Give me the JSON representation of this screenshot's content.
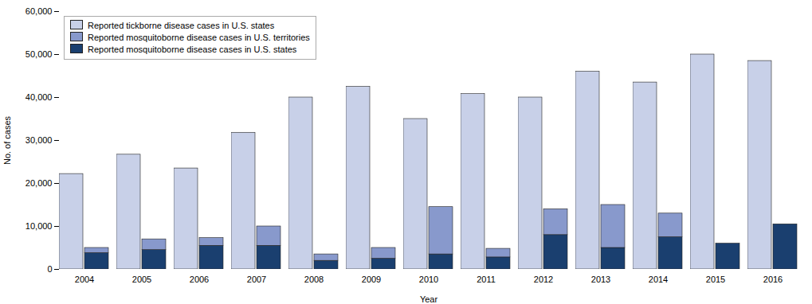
{
  "chart_data": {
    "type": "bar",
    "xlabel": "Year",
    "ylabel": "No. of cases",
    "categories": [
      "2004",
      "2005",
      "2006",
      "2007",
      "2008",
      "2009",
      "2010",
      "2011",
      "2012",
      "2013",
      "2014",
      "2015",
      "2016"
    ],
    "series": [
      {
        "name": "Reported tickborne disease cases in U.S. states",
        "color": "#c8d0e8",
        "values": [
          22200,
          26700,
          23500,
          31800,
          40000,
          42500,
          35000,
          40800,
          40000,
          46000,
          43500,
          50000,
          48500
        ]
      },
      {
        "name": "Reported mosquitoborne disease cases in U.S. territories",
        "color": "#8899cc",
        "values": [
          1200,
          2500,
          1800,
          4500,
          1500,
          2500,
          11000,
          2000,
          6000,
          10000,
          5500,
          0,
          0
        ]
      },
      {
        "name": "Reported mosquitoborne disease cases in U.S. states",
        "color": "#1a3f6f",
        "values": [
          3800,
          4500,
          5500,
          5500,
          2000,
          2500,
          3500,
          2800,
          8000,
          5000,
          7500,
          6000,
          10500
        ]
      }
    ],
    "stacked": [
      "Reported mosquitoborne disease cases in U.S. states",
      "Reported mosquitoborne disease cases in U.S. territories"
    ],
    "ylim": [
      0,
      60000
    ],
    "yticks": [
      0,
      {
        "value": 10000,
        "label": "10,000"
      },
      {
        "value": 20000,
        "label": "20,000"
      },
      {
        "value": 30000,
        "label": "30,000"
      },
      {
        "value": 40000,
        "label": "40,000"
      },
      {
        "value": 50000,
        "label": "50,000"
      },
      {
        "value": 60000,
        "label": "60,000"
      }
    ],
    "grid": false,
    "legend": "upper left"
  }
}
